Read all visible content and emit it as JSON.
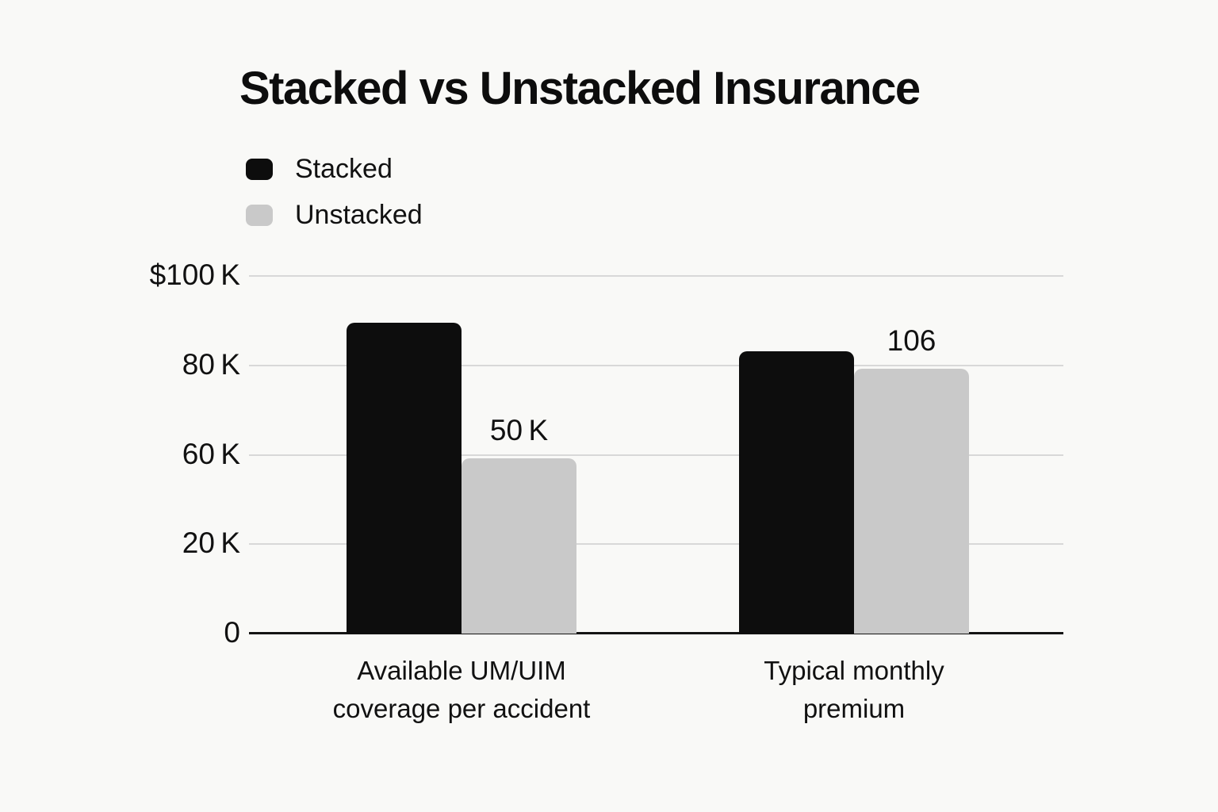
{
  "title": "Stacked vs Unstacked Insurance",
  "legend": {
    "items": [
      {
        "name": "Stacked",
        "color": "#0d0d0d"
      },
      {
        "name": "Unstacked",
        "color": "#c9c9c9"
      }
    ]
  },
  "colors": {
    "background": "#f9f9f7",
    "gridline": "#d8d8d8",
    "axis": "#141414",
    "text": "#111111",
    "stacked_bar": "#0d0d0d",
    "unstacked_bar": "#c9c9c9"
  },
  "chart_data": {
    "type": "bar",
    "title": "Stacked vs Unstacked Insurance",
    "categories": [
      "Available UM/UIM coverage per accident",
      "Typical monthly premium"
    ],
    "category_lines": [
      [
        "Available UM/UIM",
        "coverage per accident"
      ],
      [
        "Typical monthly",
        "premium"
      ]
    ],
    "series": [
      {
        "name": "Stacked",
        "color": "#0d0d0d",
        "values": [
          87,
          79
        ],
        "data_labels": [
          "",
          ""
        ]
      },
      {
        "name": "Unstacked",
        "color": "#c9c9c9",
        "values": [
          49,
          74
        ],
        "data_labels": [
          "50 K",
          "106"
        ]
      }
    ],
    "y_axis": {
      "min": 0,
      "max": 100,
      "ticks": [
        {
          "value": 100,
          "label": "$100 K"
        },
        {
          "value": 75,
          "label": "80 K"
        },
        {
          "value": 50,
          "label": "60 K"
        },
        {
          "value": 25,
          "label": "20 K"
        },
        {
          "value": 0,
          "label": "0"
        }
      ]
    },
    "grid": true,
    "legend_position": "top-left",
    "xlabel": "",
    "ylabel": ""
  }
}
